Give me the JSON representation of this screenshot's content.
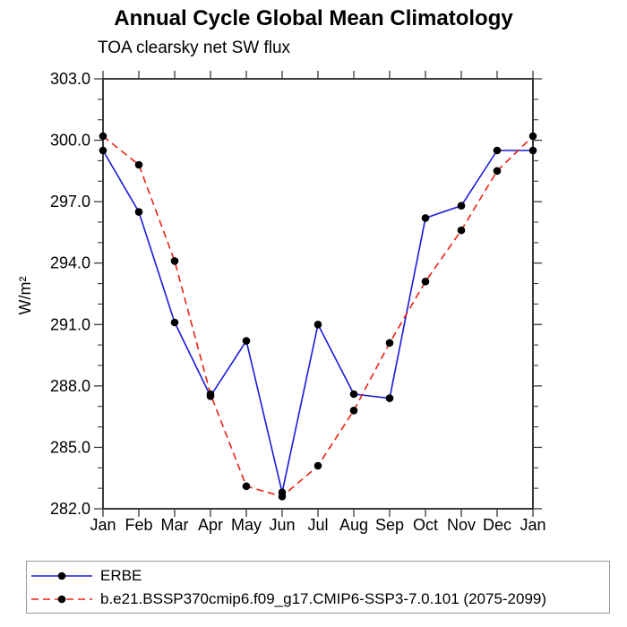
{
  "chart_data": {
    "type": "line",
    "title": "Annual Cycle Global Mean Climatology",
    "subtitle": "TOA clearsky net SW flux",
    "ylabel": "W/m²",
    "xlabel": "",
    "x_tick_labels": [
      "Jan",
      "Feb",
      "Mar",
      "Apr",
      "May",
      "Jun",
      "Jul",
      "Aug",
      "Sep",
      "Oct",
      "Nov",
      "Dec",
      "Jan"
    ],
    "y_ticks": [
      282,
      285,
      288,
      291,
      294,
      297,
      300,
      303
    ],
    "y_tick_labels": [
      "282.0",
      "285.0",
      "288.0",
      "291.0",
      "294.0",
      "297.0",
      "300.0",
      "303.0"
    ],
    "ylim": [
      282,
      303
    ],
    "y_minor_step": 1,
    "grid": false,
    "legend_position": "bottom-left-box",
    "marker": "black-dot",
    "marker_color": "#000000",
    "series": [
      {
        "name": "ERBE",
        "color": "#1a1ad9",
        "line_style": "solid",
        "values": [
          299.5,
          296.5,
          291.1,
          287.5,
          290.2,
          282.8,
          291.0,
          287.6,
          287.4,
          296.2,
          296.8,
          299.5,
          299.5
        ]
      },
      {
        "name": "b.e21.BSSP370cmip6.f09_g17.CMIP6-SSP3-7.0.101 (2075-2099)",
        "color": "#ea2114",
        "line_style": "dashed",
        "values": [
          300.2,
          298.8,
          294.1,
          287.6,
          283.1,
          282.6,
          284.1,
          286.8,
          290.1,
          293.1,
          295.6,
          298.5,
          300.2
        ]
      }
    ]
  }
}
